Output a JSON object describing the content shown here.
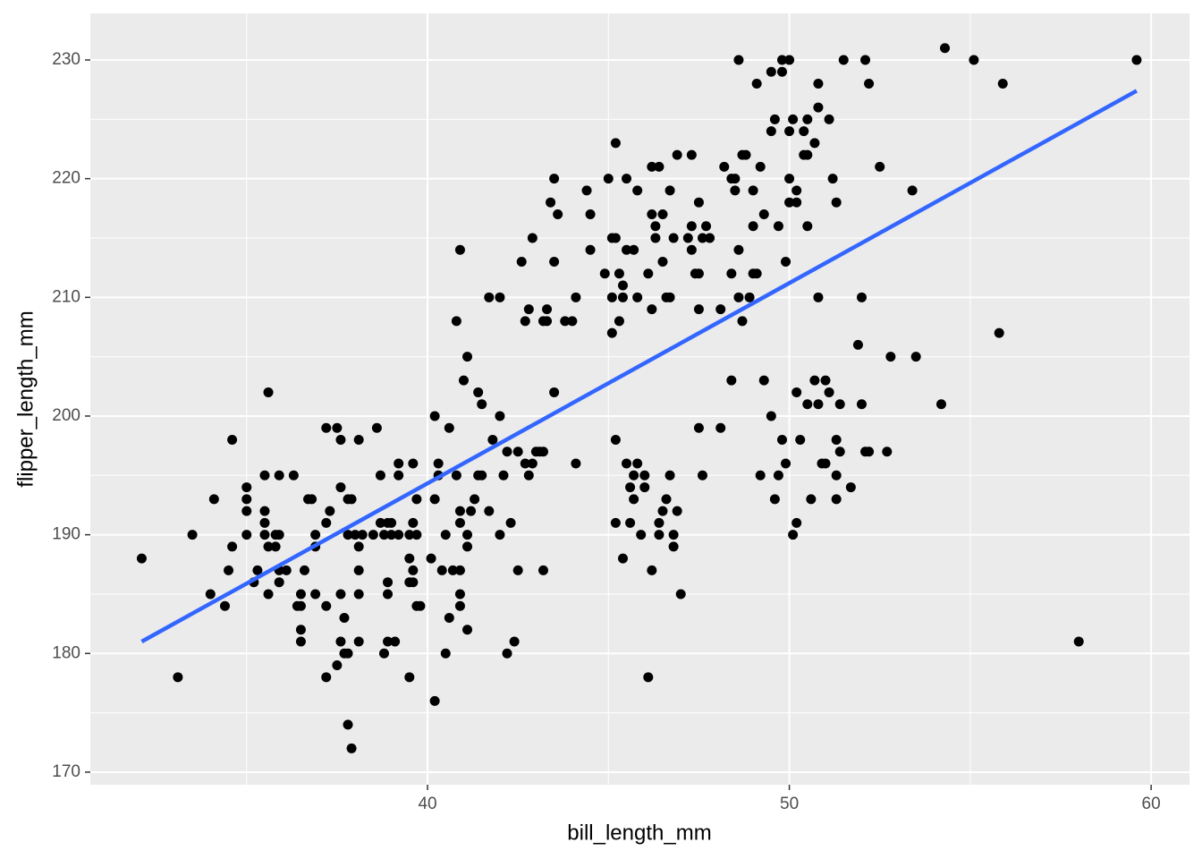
{
  "chart_data": {
    "type": "scatter",
    "xlabel": "bill_length_mm",
    "ylabel": "flipper_length_mm",
    "xlim": [
      30.68,
      61.06
    ],
    "ylim": [
      168.94,
      233.92
    ],
    "xticks": [
      40,
      50,
      60
    ],
    "yticks": [
      170,
      180,
      190,
      200,
      210,
      220,
      230
    ],
    "grid": true,
    "background": "#ebebeb",
    "series": [
      {
        "color": "#000000",
        "x": [
          54.3,
          48.6,
          49.8,
          50.0,
          51.5,
          52.1,
          55.1,
          59.6,
          49.5,
          49.8,
          49.1,
          50.8,
          52.2,
          55.9,
          50.8,
          49.6,
          50.1,
          50.5,
          51.1,
          49.5,
          50.0,
          50.4,
          45.2,
          50.7,
          46.9,
          47.3,
          48.7,
          48.8,
          50.4,
          50.5,
          46.2,
          46.4,
          48.2,
          49.2,
          52.5,
          43.5,
          45.0,
          45.5,
          48.4,
          48.5,
          50.0,
          51.2,
          44.4,
          45.8,
          46.7,
          48.5,
          49.0,
          50.2,
          53.4,
          43.4,
          47.5,
          50.0,
          50.2,
          51.3,
          43.6,
          44.5,
          46.2,
          46.5,
          49.3,
          46.3,
          47.3,
          47.7,
          49.0,
          49.7,
          50.5,
          42.9,
          45.1,
          45.2,
          46.3,
          46.8,
          47.2,
          47.6,
          47.8,
          40.9,
          44.5,
          45.5,
          45.7,
          47.3,
          48.6,
          42.6,
          43.5,
          46.5,
          49.9,
          44.9,
          45.3,
          46.1,
          47.4,
          47.5,
          48.4,
          49.0,
          49.1,
          45.4,
          41.7,
          42.0,
          44.1,
          45.1,
          45.4,
          45.8,
          46.6,
          46.7,
          48.6,
          48.9,
          50.8,
          52.0,
          42.8,
          43.3,
          46.2,
          47.5,
          48.1,
          40.8,
          42.7,
          43.2,
          43.3,
          43.8,
          44.0,
          45.3,
          48.7,
          45.1,
          55.8,
          51.9,
          41.1,
          52.8,
          53.5,
          41.0,
          48.4,
          49.3,
          50.7,
          51.0,
          35.6,
          41.4,
          43.5,
          50.2,
          51.1,
          41.5,
          50.5,
          50.8,
          51.4,
          52.0,
          54.2,
          40.2,
          42.0,
          49.5,
          37.2,
          37.5,
          38.6,
          40.6,
          47.5,
          48.1,
          34.6,
          37.6,
          38.1,
          41.8,
          45.2,
          49.8,
          50.3,
          51.3,
          42.2,
          42.5,
          43.0,
          43.1,
          43.2,
          51.4,
          52.1,
          52.2,
          52.7,
          39.2,
          39.6,
          40.3,
          42.7,
          42.9,
          44.1,
          45.5,
          45.8,
          49.9,
          50.9,
          51.0,
          35.5,
          35.9,
          36.3,
          38.7,
          39.2,
          40.3,
          40.8,
          41.4,
          41.5,
          42.1,
          42.8,
          45.7,
          46.0,
          46.7,
          47.6,
          49.2,
          49.7,
          51.3,
          35.0,
          37.6,
          45.6,
          46.0,
          51.7,
          34.1,
          35.0,
          36.7,
          36.8,
          37.8,
          37.9,
          39.7,
          40.2,
          41.3,
          45.7,
          46.6,
          49.6,
          50.6,
          51.3,
          35.0,
          35.5,
          37.3,
          40.9,
          41.2,
          41.7,
          46.5,
          46.9,
          35.5,
          37.2,
          38.7,
          38.9,
          39.0,
          39.6,
          40.9,
          42.3,
          45.2,
          45.6,
          46.4,
          50.2,
          33.5,
          35.0,
          35.5,
          35.8,
          35.9,
          36.9,
          37.8,
          38.0,
          38.2,
          38.5,
          38.8,
          39.0,
          39.2,
          39.5,
          39.7,
          40.5,
          41.1,
          42.0,
          45.9,
          46.4,
          46.8,
          50.1,
          34.6,
          35.6,
          35.8,
          36.9,
          38.1,
          41.1,
          46.8,
          32.1,
          39.5,
          40.1,
          45.4,
          34.5,
          35.3,
          35.9,
          36.1,
          36.6,
          38.1,
          39.6,
          40.4,
          40.7,
          40.9,
          42.5,
          43.2,
          46.2,
          35.2,
          35.9,
          38.9,
          39.5,
          39.6,
          34.0,
          35.6,
          36.5,
          36.9,
          37.6,
          38.1,
          38.9,
          40.9,
          47.0,
          34.4,
          36.4,
          36.5,
          37.2,
          39.7,
          39.8,
          40.9,
          37.7,
          40.6,
          36.5,
          41.1,
          36.5,
          37.6,
          38.1,
          38.9,
          39.1,
          42.4,
          58.0,
          37.7,
          37.8,
          38.8,
          40.5,
          42.2,
          37.5,
          33.1,
          37.2,
          39.5,
          46.1,
          40.2,
          37.8,
          37.9
        ],
        "values": [
          231,
          230,
          230,
          230,
          230,
          230,
          230,
          230,
          229,
          229,
          228,
          228,
          228,
          228,
          226,
          225,
          225,
          225,
          225,
          224,
          224,
          224,
          223,
          223,
          222,
          222,
          222,
          222,
          222,
          222,
          221,
          221,
          221,
          221,
          221,
          220,
          220,
          220,
          220,
          220,
          220,
          220,
          219,
          219,
          219,
          219,
          219,
          219,
          219,
          218,
          218,
          218,
          218,
          218,
          217,
          217,
          217,
          217,
          217,
          216,
          216,
          216,
          216,
          216,
          216,
          215,
          215,
          215,
          215,
          215,
          215,
          215,
          215,
          214,
          214,
          214,
          214,
          214,
          214,
          213,
          213,
          213,
          213,
          212,
          212,
          212,
          212,
          212,
          212,
          212,
          212,
          211,
          210,
          210,
          210,
          210,
          210,
          210,
          210,
          210,
          210,
          210,
          210,
          210,
          209,
          209,
          209,
          209,
          209,
          208,
          208,
          208,
          208,
          208,
          208,
          208,
          208,
          207,
          207,
          206,
          205,
          205,
          205,
          203,
          203,
          203,
          203,
          203,
          202,
          202,
          202,
          202,
          202,
          201,
          201,
          201,
          201,
          201,
          201,
          200,
          200,
          200,
          199,
          199,
          199,
          199,
          199,
          199,
          198,
          198,
          198,
          198,
          198,
          198,
          198,
          198,
          197,
          197,
          197,
          197,
          197,
          197,
          197,
          197,
          197,
          196,
          196,
          196,
          196,
          196,
          196,
          196,
          196,
          196,
          196,
          196,
          195,
          195,
          195,
          195,
          195,
          195,
          195,
          195,
          195,
          195,
          195,
          195,
          195,
          195,
          195,
          195,
          195,
          195,
          194,
          194,
          194,
          194,
          194,
          193,
          193,
          193,
          193,
          193,
          193,
          193,
          193,
          193,
          193,
          193,
          193,
          193,
          193,
          192,
          192,
          192,
          192,
          192,
          192,
          192,
          192,
          191,
          191,
          191,
          191,
          191,
          191,
          191,
          191,
          191,
          191,
          191,
          191,
          190,
          190,
          190,
          190,
          190,
          190,
          190,
          190,
          190,
          190,
          190,
          190,
          190,
          190,
          190,
          190,
          190,
          190,
          190,
          190,
          190,
          190,
          189,
          189,
          189,
          189,
          189,
          189,
          189,
          188,
          188,
          188,
          188,
          187,
          187,
          187,
          187,
          187,
          187,
          187,
          187,
          187,
          187,
          187,
          187,
          187,
          186,
          186,
          186,
          186,
          186,
          185,
          185,
          185,
          185,
          185,
          185,
          185,
          185,
          185,
          184,
          184,
          184,
          184,
          184,
          184,
          184,
          183,
          183,
          182,
          182,
          181,
          181,
          181,
          181,
          181,
          181,
          181,
          180,
          180,
          180,
          180,
          180,
          179,
          178,
          178,
          178,
          178,
          176,
          174,
          172
        ]
      }
    ],
    "trend": {
      "color": "#3366ff",
      "x": [
        32.1,
        59.6
      ],
      "values": [
        181.0,
        227.4
      ]
    }
  }
}
